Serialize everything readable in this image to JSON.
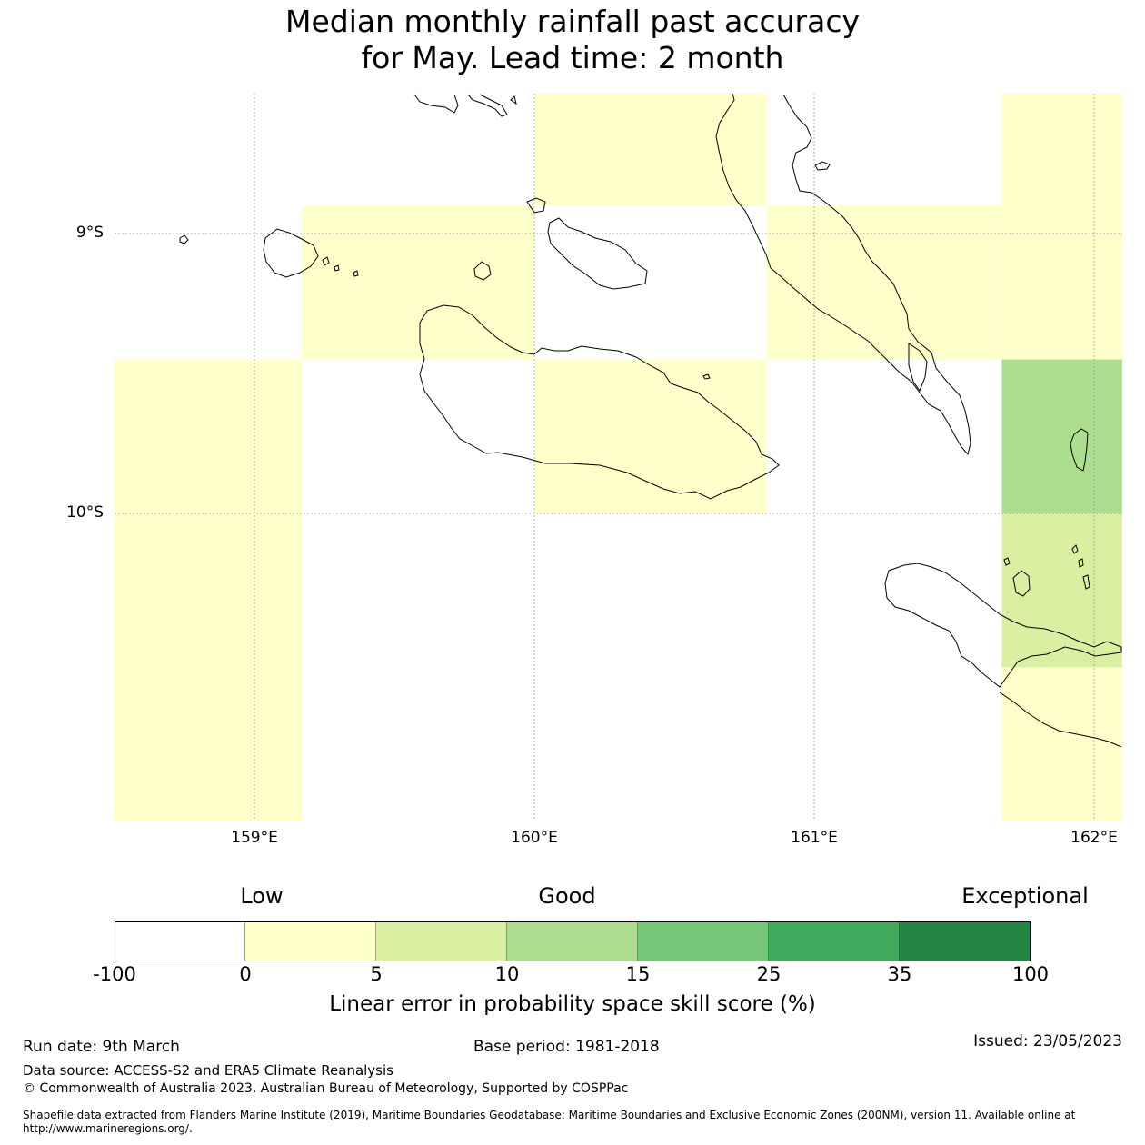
{
  "title": {
    "line1": "Median monthly rainfall past accuracy",
    "line2": "for May. Lead time: 2 month"
  },
  "map": {
    "lat_labels": [
      "9°S",
      "10°S"
    ],
    "lon_labels": [
      "159°E",
      "160°E",
      "161°E",
      "162°E"
    ],
    "extent": {
      "lon_min": 158.5,
      "lon_max": 162.1,
      "lat_max": -8.5,
      "lat_min": -11.1
    },
    "grid_cells": [
      {
        "lon0": 158.5,
        "lon1": 159.17,
        "lat0": -9.45,
        "lat1": -11.1,
        "color": "#ffffcc"
      },
      {
        "lon0": 159.17,
        "lon1": 160.0,
        "lat0": -8.9,
        "lat1": -9.45,
        "color": "#ffffcc"
      },
      {
        "lon0": 160.0,
        "lon1": 160.83,
        "lat0": -8.5,
        "lat1": -8.9,
        "color": "#ffffcc"
      },
      {
        "lon0": 160.0,
        "lon1": 160.83,
        "lat0": -9.45,
        "lat1": -10.0,
        "color": "#ffffcc"
      },
      {
        "lon0": 160.83,
        "lon1": 161.67,
        "lat0": -8.9,
        "lat1": -9.45,
        "color": "#ffffcc"
      },
      {
        "lon0": 161.67,
        "lon1": 162.1,
        "lat0": -8.5,
        "lat1": -9.45,
        "color": "#ffffcc"
      },
      {
        "lon0": 161.67,
        "lon1": 162.1,
        "lat0": -9.45,
        "lat1": -10.0,
        "color": "#addd8e"
      },
      {
        "lon0": 161.67,
        "lon1": 162.1,
        "lat0": -10.0,
        "lat1": -10.55,
        "color": "#d9f0a3"
      },
      {
        "lon0": 161.67,
        "lon1": 162.1,
        "lat0": -10.55,
        "lat1": -11.1,
        "color": "#ffffcc"
      }
    ]
  },
  "colorbar": {
    "categories": [
      "Low",
      "Good",
      "Exceptional"
    ],
    "ticks": [
      "-100",
      "0",
      "5",
      "10",
      "15",
      "25",
      "35",
      "100"
    ],
    "colors": [
      "#ffffff",
      "#ffffcc",
      "#d9f0a3",
      "#addd8e",
      "#78c679",
      "#41ab5d",
      "#238443"
    ],
    "label": "Linear error in probability space skill score (%)"
  },
  "footer": {
    "run_date": "Run date: 9th March",
    "base_period": "Base period: 1981-2018",
    "issued": "Issued: 23/05/2023",
    "data_source": "Data source: ACCESS-S2 and ERA5 Climate Reanalysis",
    "copyright": "© Commonwealth of Australia 2023, Australian Bureau of Meteorology, Supported by COSPPac",
    "shapefile": "Shapefile data extracted from Flanders Marine Institute (2019), Maritime Boundaries Geodatabase: Maritime Boundaries and Exclusive Economic Zones (200NM), version 11. Available online at http://www.marineregions.org/."
  }
}
